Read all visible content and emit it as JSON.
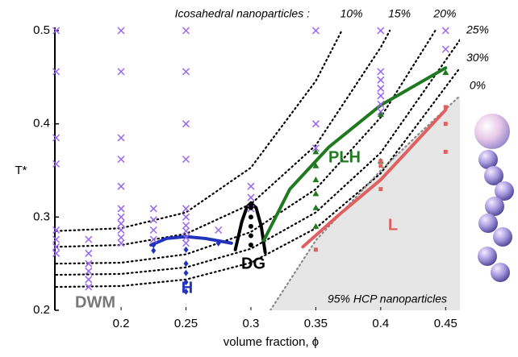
{
  "chart_data": {
    "type": "scatter",
    "x_label": "volume fraction, ϕ",
    "y_label": "T*",
    "xlim": [
      0.149,
      0.461
    ],
    "ylim": [
      0.2,
      0.5
    ],
    "xticks": [
      0.2,
      0.25,
      0.3,
      0.35,
      0.4,
      0.45
    ],
    "yticks": [
      0.2,
      0.3,
      0.4,
      0.5
    ],
    "curves_title": "Icosahedral nanoparticles :",
    "region_label": "95% HCP nanoparticles",
    "annotations": [
      {
        "text": "DWM",
        "color": "#777777"
      },
      {
        "text": "H",
        "color": "#2233bb"
      },
      {
        "text": "DG",
        "color": "#000000"
      },
      {
        "text": "PLH",
        "color": "#1f7a1f"
      },
      {
        "text": "L",
        "color": "#e06060"
      }
    ],
    "series": [
      {
        "name": "10%",
        "style": "dotted",
        "color": "#000000",
        "x": [
          0.15,
          0.2,
          0.25,
          0.3,
          0.35,
          0.37
        ],
        "y": [
          0.285,
          0.288,
          0.305,
          0.353,
          0.446,
          0.5
        ]
      },
      {
        "name": "15%",
        "style": "dotted",
        "color": "#000000",
        "x": [
          0.15,
          0.2,
          0.25,
          0.3,
          0.35,
          0.4,
          0.407
        ],
        "y": [
          0.268,
          0.27,
          0.282,
          0.314,
          0.377,
          0.482,
          0.5
        ]
      },
      {
        "name": "20%",
        "style": "dotted",
        "color": "#000000",
        "x": [
          0.15,
          0.2,
          0.25,
          0.3,
          0.35,
          0.4,
          0.442
        ],
        "y": [
          0.25,
          0.251,
          0.26,
          0.284,
          0.33,
          0.407,
          0.5
        ]
      },
      {
        "name": "25%",
        "style": "dotted",
        "color": "#000000",
        "x": [
          0.15,
          0.2,
          0.25,
          0.3,
          0.35,
          0.4,
          0.461
        ],
        "y": [
          0.238,
          0.239,
          0.246,
          0.266,
          0.305,
          0.369,
          0.49
        ]
      },
      {
        "name": "30%",
        "style": "dotted",
        "color": "#000000",
        "x": [
          0.15,
          0.2,
          0.25,
          0.3,
          0.35,
          0.4,
          0.461
        ],
        "y": [
          0.225,
          0.226,
          0.233,
          0.251,
          0.288,
          0.347,
          0.46
        ]
      },
      {
        "name": "0%",
        "style": "region",
        "color": "#888888",
        "fill": "#e6e6e6",
        "x": [
          0.315,
          0.35,
          0.38,
          0.4,
          0.43,
          0.461
        ],
        "y": [
          0.2,
          0.275,
          0.32,
          0.35,
          0.39,
          0.43
        ]
      },
      {
        "style": "solid",
        "color": "#2233bb",
        "x": [
          0.223,
          0.235,
          0.25,
          0.265,
          0.285
        ],
        "y": [
          0.27,
          0.277,
          0.279,
          0.277,
          0.272
        ]
      },
      {
        "style": "solid",
        "color": "#000000",
        "x": [
          0.288,
          0.293,
          0.297,
          0.3,
          0.304,
          0.308,
          0.311
        ],
        "y": [
          0.265,
          0.295,
          0.311,
          0.315,
          0.31,
          0.29,
          0.262
        ]
      },
      {
        "style": "solid",
        "color": "#1f7a1f",
        "x": [
          0.31,
          0.33,
          0.36,
          0.4,
          0.45
        ],
        "y": [
          0.275,
          0.33,
          0.375,
          0.42,
          0.46
        ]
      },
      {
        "style": "solid",
        "color": "#e06060",
        "x": [
          0.34,
          0.37,
          0.4,
          0.43,
          0.45
        ],
        "y": [
          0.268,
          0.305,
          0.34,
          0.385,
          0.415
        ]
      },
      {
        "marker": "x",
        "color": "#9966ee",
        "x": [
          0.15,
          0.15,
          0.15,
          0.15,
          0.15,
          0.15,
          0.15,
          0.15,
          0.175,
          0.175,
          0.175,
          0.175,
          0.175,
          0.175,
          0.2,
          0.2,
          0.2,
          0.2,
          0.2,
          0.2,
          0.2,
          0.2,
          0.2,
          0.2,
          0.2,
          0.225,
          0.225,
          0.225,
          0.225,
          0.25,
          0.25,
          0.25,
          0.25,
          0.25,
          0.25,
          0.25,
          0.25,
          0.25,
          0.25,
          0.275,
          0.3,
          0.3,
          0.3,
          0.35,
          0.35,
          0.35,
          0.4,
          0.4,
          0.4,
          0.4,
          0.4,
          0.4,
          0.4,
          0.45,
          0.45
        ],
        "y": [
          0.5,
          0.456,
          0.385,
          0.357,
          0.286,
          0.276,
          0.268,
          0.261,
          0.276,
          0.261,
          0.25,
          0.242,
          0.233,
          0.225,
          0.5,
          0.456,
          0.385,
          0.362,
          0.333,
          0.309,
          0.3,
          0.293,
          0.286,
          0.278,
          0.272,
          0.309,
          0.297,
          0.286,
          0.276,
          0.5,
          0.456,
          0.4,
          0.362,
          0.309,
          0.3,
          0.291,
          0.285,
          0.278,
          0.272,
          0.286,
          0.333,
          0.321,
          0.309,
          0.5,
          0.4,
          0.374,
          0.5,
          0.456,
          0.447,
          0.438,
          0.43,
          0.421,
          0.413,
          0.5,
          0.48
        ]
      },
      {
        "marker": "diamond",
        "color": "#2233bb",
        "x": [
          0.225,
          0.225,
          0.25,
          0.25,
          0.25,
          0.25,
          0.25,
          0.275
        ],
        "y": [
          0.264,
          0.27,
          0.265,
          0.25,
          0.24,
          0.23,
          0.22,
          0.272
        ]
      },
      {
        "marker": "circle",
        "color": "#000000",
        "x": [
          0.3,
          0.3,
          0.3,
          0.3,
          0.3
        ],
        "y": [
          0.31,
          0.3,
          0.29,
          0.28,
          0.27
        ]
      },
      {
        "marker": "triangle",
        "color": "#1f7a1f",
        "x": [
          0.35,
          0.35,
          0.35,
          0.35,
          0.35,
          0.35,
          0.4,
          0.4,
          0.45
        ],
        "y": [
          0.37,
          0.355,
          0.34,
          0.325,
          0.31,
          0.29,
          0.41,
          0.36,
          0.455
        ]
      },
      {
        "marker": "square",
        "color": "#e06060",
        "x": [
          0.35,
          0.4,
          0.4,
          0.4,
          0.45,
          0.45,
          0.45
        ],
        "y": [
          0.265,
          0.36,
          0.355,
          0.33,
          0.418,
          0.4,
          0.37
        ]
      }
    ]
  }
}
